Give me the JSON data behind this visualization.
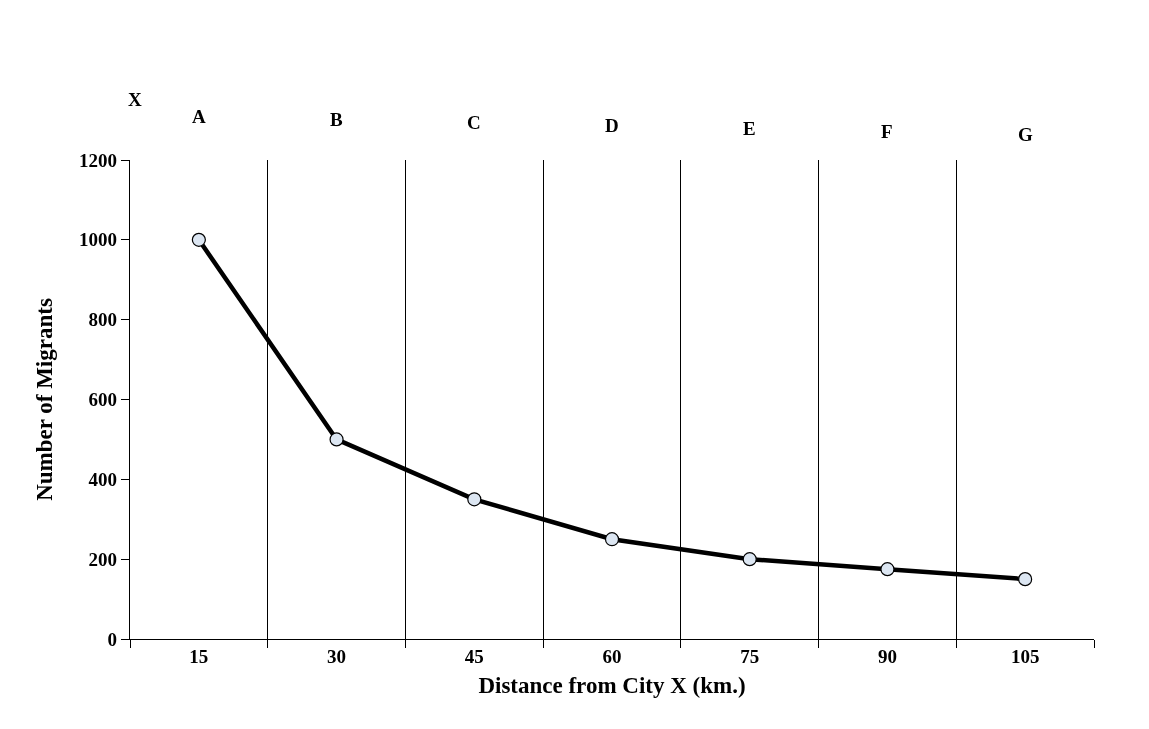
{
  "chart_data": {
    "type": "line",
    "xlabel": "Distance from City X (km.)",
    "ylabel": "Number of Migrants",
    "categories": [
      "15",
      "30",
      "45",
      "60",
      "75",
      "90",
      "105"
    ],
    "series": [
      {
        "color": "#000000",
        "values": [
          1000,
          500,
          350,
          250,
          200,
          175,
          150
        ]
      }
    ],
    "ylim": [
      0,
      1200
    ],
    "yticks": [
      0,
      200,
      400,
      600,
      800,
      1000,
      1200
    ],
    "grid": "x",
    "marker": "circle",
    "line_style": "solid",
    "annotations": [
      "X",
      "A",
      "B",
      "C",
      "D",
      "E",
      "F",
      "G"
    ]
  }
}
